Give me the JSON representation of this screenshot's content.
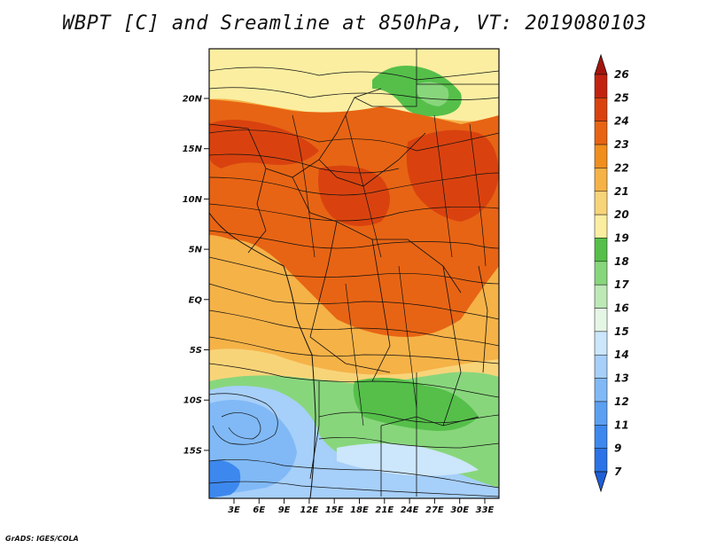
{
  "title": "WBPT [C] and Sreamline at 850hPa, VT: 2019080103",
  "credit": "GrADS: IGES/COLA",
  "map": {
    "lat_ticks": [
      "20N",
      "15N",
      "10N",
      "5N",
      "EQ",
      "5S",
      "10S",
      "15S"
    ],
    "lon_ticks": [
      "3E",
      "6E",
      "9E",
      "12E",
      "15E",
      "18E",
      "21E",
      "24E",
      "27E",
      "30E",
      "33E"
    ]
  },
  "colorbar": {
    "levels": [
      "7",
      "9",
      "11",
      "12",
      "13",
      "14",
      "15",
      "16",
      "17",
      "18",
      "19",
      "20",
      "21",
      "22",
      "23",
      "24",
      "25",
      "26"
    ],
    "colors": [
      "#1f5fd6",
      "#2b73e6",
      "#3d88ee",
      "#5ca0f2",
      "#80b9f6",
      "#a6cff9",
      "#cce6fb",
      "#e6f6e6",
      "#bce9b5",
      "#88d67c",
      "#55bf4a",
      "#fbeea1",
      "#f8d479",
      "#f5b247",
      "#f08e1e",
      "#e76414",
      "#d9420f",
      "#c22310",
      "#a3150c"
    ]
  }
}
